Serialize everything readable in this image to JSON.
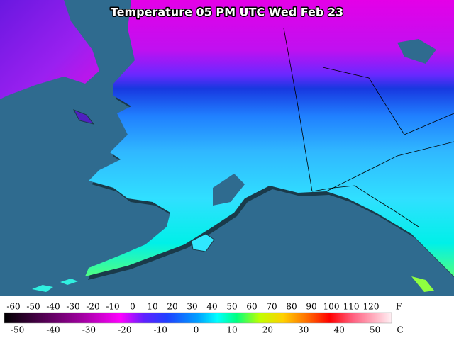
{
  "map": {
    "title": "Temperature 05 PM UTC Wed Feb 23",
    "legend": {
      "fahrenheit": {
        "unit": "F",
        "labels": [
          -60,
          -50,
          -40,
          -30,
          -20,
          -10,
          0,
          10,
          20,
          30,
          40,
          50,
          60,
          70,
          80,
          90,
          100,
          110,
          120
        ]
      },
      "celsius": {
        "unit": "C",
        "labels": [
          -50,
          -40,
          -30,
          -20,
          -10,
          0,
          10,
          20,
          30,
          40,
          50
        ]
      }
    }
  }
}
